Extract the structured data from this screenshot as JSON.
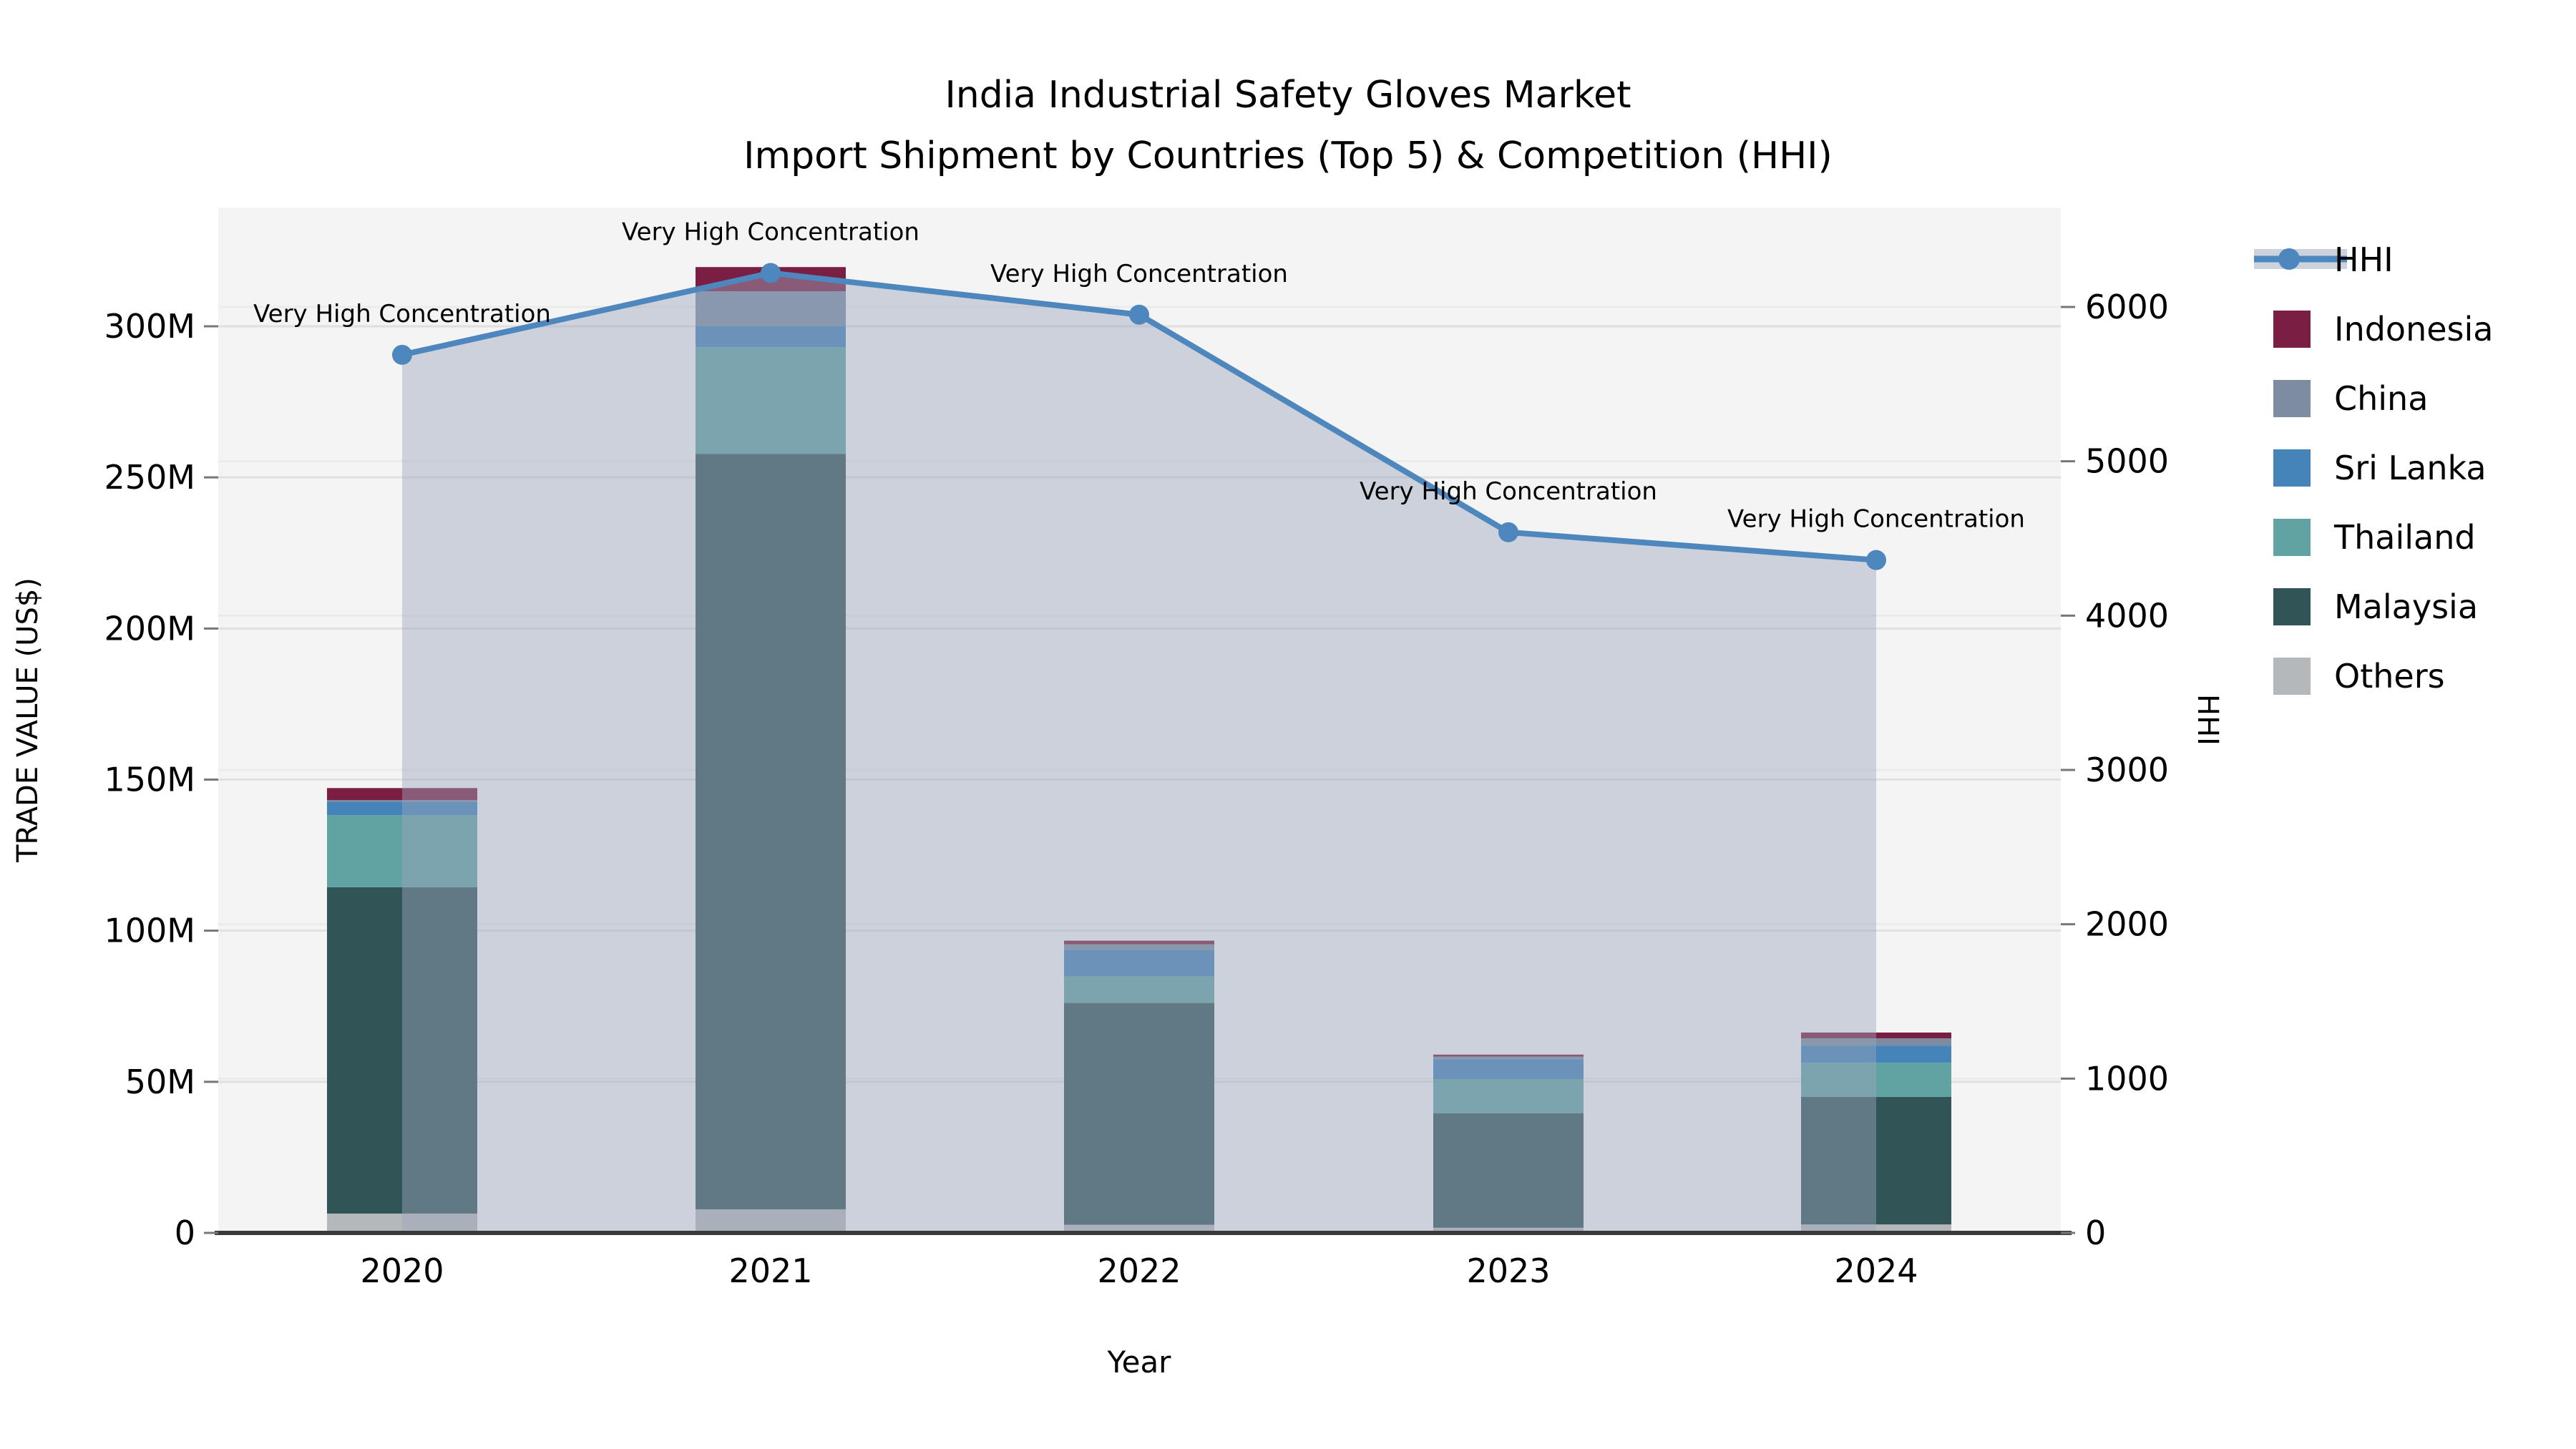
{
  "title": {
    "line1": "India Industrial Safety Gloves Market",
    "line2": "Import Shipment by Countries (Top 5) & Competition (HHI)"
  },
  "chart_data": {
    "type": "combo: stacked vertical bars (trade value) + line with markers (HHI) on secondary axis, with shaded area under the line",
    "x": [
      "2020",
      "2021",
      "2022",
      "2023",
      "2024"
    ],
    "xlabel": "Year",
    "ylabel_left": "TRADE VALUE (US$)",
    "ylabel_right": "HHI",
    "y_left_ticks": [
      "0",
      "50M",
      "100M",
      "150M",
      "200M",
      "250M",
      "300M"
    ],
    "y_left_tick_values_musd": [
      0,
      50,
      100,
      150,
      200,
      250,
      300
    ],
    "y_left_range_musd": [
      0,
      339
    ],
    "y_right_ticks": [
      "0",
      "1000",
      "2000",
      "3000",
      "4000",
      "5000",
      "6000"
    ],
    "y_right_tick_values": [
      0,
      1000,
      2000,
      3000,
      4000,
      5000,
      6000
    ],
    "y_right_range": [
      0,
      6645
    ],
    "grid": true,
    "legend_position": "right-outside",
    "stack_order_bottom_to_top": [
      "Others",
      "Malaysia",
      "Thailand",
      "Sri Lanka",
      "China",
      "Indonesia"
    ],
    "series": [
      {
        "name": "Indonesia",
        "color": "#7b1e43",
        "values_musd": [
          4.0,
          8.0,
          1.2,
          0.7,
          1.9
        ]
      },
      {
        "name": "China",
        "color": "#7d8ca0",
        "values_musd": [
          0.5,
          11.4,
          1.8,
          0.8,
          2.4
        ]
      },
      {
        "name": "Sri Lanka",
        "color": "#4484b8",
        "values_musd": [
          4.5,
          7.1,
          8.8,
          6.6,
          5.7
        ]
      },
      {
        "name": "Thailand",
        "color": "#61a3a3",
        "values_musd": [
          23.8,
          35.3,
          8.8,
          11.3,
          11.3
        ]
      },
      {
        "name": "Malaysia",
        "color": "#315457",
        "values_musd": [
          108.0,
          250.0,
          73.4,
          37.9,
          42.2
        ]
      },
      {
        "name": "Others",
        "color": "#b5b8ba",
        "values_musd": [
          6.4,
          7.8,
          2.7,
          1.7,
          2.8
        ]
      }
    ],
    "bar_totals_musd": [
      147.2,
      319.6,
      96.7,
      59.0,
      66.3
    ],
    "hhi_line": {
      "name": "HHI",
      "color": "#4d87bd",
      "area_fill": "rgba(155,166,188,0.45)",
      "values": [
        5690,
        6220,
        5950,
        4540,
        4360
      ]
    },
    "annotations": [
      {
        "x": "2020",
        "text": "Very High Concentration"
      },
      {
        "x": "2021",
        "text": "Very High Concentration"
      },
      {
        "x": "2022",
        "text": "Very High Concentration"
      },
      {
        "x": "2023",
        "text": "Very High Concentration"
      },
      {
        "x": "2024",
        "text": "Very High Concentration"
      }
    ]
  },
  "legend": {
    "items": [
      {
        "label": "HHI",
        "type": "line",
        "color": "#4d87bd"
      },
      {
        "label": "Indonesia",
        "type": "swatch",
        "color": "#7b1e43"
      },
      {
        "label": "China",
        "type": "swatch",
        "color": "#7d8ca0"
      },
      {
        "label": "Sri Lanka",
        "type": "swatch",
        "color": "#4484b8"
      },
      {
        "label": "Thailand",
        "type": "swatch",
        "color": "#61a3a3"
      },
      {
        "label": "Malaysia",
        "type": "swatch",
        "color": "#315457"
      },
      {
        "label": "Others",
        "type": "swatch",
        "color": "#b5b8ba"
      }
    ]
  }
}
